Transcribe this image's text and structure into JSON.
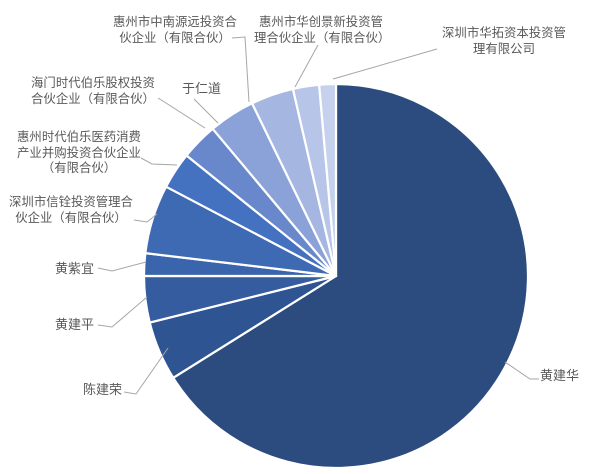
{
  "chart": {
    "background": "#FFFFFF",
    "label_color": "#595959",
    "leader_line_color": "#A6A6A6",
    "slice_border_color": "#FFFFFF"
  },
  "chart_data": {
    "type": "pie",
    "title": "",
    "legend": "none",
    "label_style": "outside-end category labels with leader lines",
    "start_angle_deg": 0,
    "direction": "clockwise",
    "total_percent": 100,
    "series": [
      {
        "label": "黄建华",
        "value": 66.1,
        "color": "#2C4B7E",
        "label_lines": [
          "黄建华"
        ]
      },
      {
        "label": "陈建荣",
        "value": 5.0,
        "color": "#2F5492",
        "label_lines": [
          "陈建荣"
        ]
      },
      {
        "label": "黄建平",
        "value": 3.9,
        "color": "#355C9F",
        "label_lines": [
          "黄建平"
        ]
      },
      {
        "label": "黄紫宜",
        "value": 1.9,
        "color": "#3A64AC",
        "label_lines": [
          "黄紫宜"
        ]
      },
      {
        "label": "深圳市信铨投资管理合伙企业（有限合伙）",
        "value": 5.8,
        "color": "#3E69B3",
        "label_lines": [
          "深圳市信铨投资管理合",
          "伙企业（有限合伙）"
        ]
      },
      {
        "label": "惠州时代伯乐医药消费产业并购投资合伙企业（有限合伙）",
        "value": 3.1,
        "color": "#4571C1",
        "label_lines": [
          "惠州时代伯乐医药消费",
          "产业并购投资合伙企业",
          "（有限合伙）"
        ]
      },
      {
        "label": "海门时代伯乐股权投资合伙企业（有限合伙）",
        "value": 3.1,
        "color": "#6988CC",
        "label_lines": [
          "海门时代伯乐股权投资",
          "合伙企业（有限合伙）"
        ]
      },
      {
        "label": "于仁道",
        "value": 3.9,
        "color": "#8AA2D8",
        "label_lines": [
          "于仁道"
        ]
      },
      {
        "label": "惠州市中南源远投资合伙企业（有限合伙）",
        "value": 3.6,
        "color": "#A5B7E1",
        "label_lines": [
          "惠州市中南源远投资合",
          "伙企业（有限合伙）"
        ]
      },
      {
        "label": "惠州市华创景新投资管理合伙企业（有限合伙）",
        "value": 2.2,
        "color": "#B7C5E8",
        "label_lines": [
          "惠州市华创景新投资管",
          "理合伙企业（有限合伙）"
        ]
      },
      {
        "label": "深圳市华拓资本投资管理有限公司",
        "value": 1.4,
        "color": "#C6D2ED",
        "label_lines": [
          "深圳市华拓资本投资管",
          "理有限公司"
        ]
      }
    ]
  }
}
